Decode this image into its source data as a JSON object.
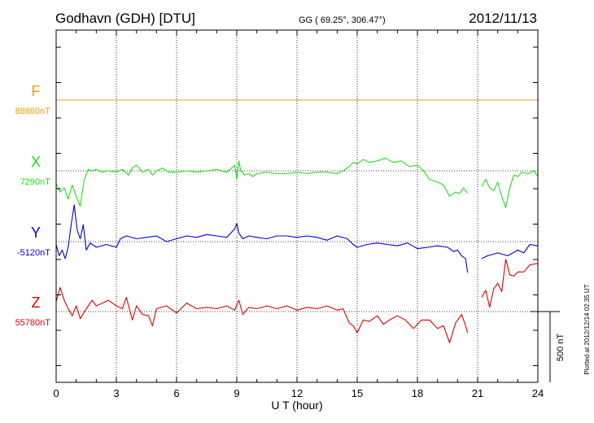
{
  "chart_data": {
    "type": "line",
    "title": "Godhavn (GDH)  [DTU]",
    "subtitle": "GG ( 69.25°, 306.47°)",
    "date": "2012/11/13",
    "xlabel": "U T (hour)",
    "xlim": [
      0,
      24
    ],
    "xticks": [
      "0",
      "3",
      "6",
      "9",
      "12",
      "15",
      "18",
      "21",
      "24"
    ],
    "grid": true,
    "scale_bar_label": "500 nT",
    "plotted_note": "Plotted at 2012/12/14 02:35 UT",
    "panels": [
      {
        "name": "F",
        "baseline_label": "88880nT",
        "color": "#f0a000",
        "x": [
          0,
          24
        ],
        "y": [
          0,
          0
        ]
      },
      {
        "name": "X",
        "baseline_label": "7290nT",
        "color": "#20e020",
        "x": [
          0,
          0.2,
          0.4,
          0.6,
          0.8,
          1.0,
          1.2,
          1.4,
          1.6,
          1.8,
          2.0,
          2.3,
          2.6,
          3.0,
          3.3,
          3.6,
          3.8,
          4.0,
          4.3,
          4.6,
          4.8,
          5.0,
          5.3,
          5.6,
          6.0,
          6.5,
          7.0,
          7.5,
          8.0,
          8.5,
          8.9,
          9.0,
          9.1,
          9.2,
          9.4,
          9.6,
          9.8,
          10.0,
          10.5,
          11.0,
          11.5,
          12.0,
          12.5,
          13.0,
          13.5,
          14.0,
          14.3,
          14.6,
          14.8,
          15.0,
          15.3,
          15.6,
          16.0,
          16.4,
          16.8,
          17.2,
          17.6,
          18.0,
          18.3,
          18.6,
          19.0,
          19.3,
          19.6,
          19.9,
          20.1,
          20.3,
          20.5,
          null,
          21.2,
          21.4,
          21.6,
          21.8,
          22.0,
          22.2,
          22.4,
          22.6,
          22.8,
          23.0,
          23.2,
          23.5,
          23.8,
          24.0
        ],
        "y": [
          -90,
          -150,
          -120,
          -200,
          -100,
          -180,
          -250,
          -60,
          10,
          0,
          10,
          -10,
          0,
          -10,
          10,
          -30,
          20,
          40,
          -10,
          10,
          -30,
          0,
          20,
          -10,
          -10,
          0,
          -10,
          0,
          10,
          -10,
          40,
          -60,
          70,
          0,
          -30,
          -20,
          -40,
          -20,
          -10,
          -20,
          -20,
          -10,
          -20,
          -10,
          -10,
          -20,
          0,
          30,
          60,
          50,
          80,
          60,
          70,
          90,
          60,
          70,
          30,
          40,
          0,
          -60,
          -80,
          -100,
          -180,
          -150,
          -160,
          -120,
          -160,
          null,
          -110,
          -60,
          -120,
          -140,
          -80,
          -180,
          -260,
          -120,
          -30,
          -40,
          -10,
          -20,
          0,
          -40
        ]
      },
      {
        "name": "Y",
        "baseline_label": "-5120nT",
        "color": "#0000e0",
        "x": [
          0,
          0.15,
          0.3,
          0.45,
          0.6,
          0.75,
          0.9,
          1.05,
          1.2,
          1.35,
          1.5,
          1.7,
          2.0,
          2.5,
          3.0,
          3.2,
          3.5,
          4.0,
          4.5,
          5.0,
          5.5,
          6.0,
          6.5,
          7.0,
          7.5,
          8.0,
          8.5,
          8.9,
          9.0,
          9.1,
          9.3,
          9.6,
          10.0,
          10.5,
          11.0,
          11.5,
          12.0,
          12.5,
          13.0,
          13.5,
          14.0,
          14.5,
          14.8,
          15.0,
          15.5,
          16.0,
          16.5,
          17.0,
          17.5,
          18.0,
          18.5,
          19.0,
          19.5,
          19.8,
          20.0,
          20.2,
          20.4,
          20.5,
          null,
          21.2,
          21.5,
          22.0,
          22.5,
          23.0,
          23.3,
          23.6,
          24.0
        ],
        "y": [
          -20,
          -100,
          -60,
          -120,
          -40,
          120,
          260,
          80,
          20,
          120,
          -60,
          -10,
          -40,
          -20,
          -40,
          20,
          40,
          20,
          30,
          40,
          0,
          20,
          40,
          30,
          50,
          40,
          30,
          90,
          130,
          60,
          20,
          40,
          30,
          20,
          40,
          40,
          30,
          40,
          30,
          10,
          40,
          20,
          -20,
          -40,
          -20,
          -10,
          -20,
          -30,
          -10,
          -50,
          -40,
          -30,
          -40,
          -70,
          -60,
          -100,
          -120,
          -220,
          null,
          -120,
          -100,
          -80,
          -100,
          -60,
          -80,
          -20,
          -30
        ]
      },
      {
        "name": "Z",
        "baseline_label": "55780nT",
        "color": "#e00000",
        "x": [
          0,
          0.2,
          0.4,
          0.6,
          0.8,
          1.0,
          1.2,
          1.5,
          1.8,
          2.0,
          2.3,
          2.6,
          3.0,
          3.3,
          3.5,
          3.8,
          4.0,
          4.3,
          4.6,
          4.8,
          5.0,
          5.5,
          6.0,
          6.5,
          7.0,
          7.5,
          8.0,
          8.5,
          8.9,
          9.1,
          9.3,
          9.6,
          10.0,
          10.5,
          11.0,
          11.5,
          12.0,
          12.5,
          13.0,
          13.5,
          14.0,
          14.3,
          14.6,
          14.8,
          15.0,
          15.3,
          15.6,
          16.0,
          16.3,
          16.6,
          17.0,
          17.4,
          17.8,
          18.2,
          18.6,
          19.0,
          19.3,
          19.6,
          19.9,
          20.2,
          20.4,
          20.5,
          null,
          21.2,
          21.4,
          21.6,
          21.8,
          22.0,
          22.2,
          22.4,
          22.6,
          22.8,
          23.0,
          23.3,
          23.6,
          24.0
        ],
        "y": [
          70,
          170,
          80,
          20,
          -30,
          40,
          -50,
          20,
          80,
          40,
          60,
          80,
          40,
          20,
          100,
          -60,
          40,
          -20,
          -30,
          -100,
          20,
          40,
          -10,
          60,
          20,
          30,
          20,
          40,
          10,
          80,
          -20,
          30,
          20,
          40,
          20,
          40,
          10,
          30,
          20,
          40,
          10,
          20,
          -80,
          -100,
          -150,
          -60,
          -70,
          -30,
          -90,
          -60,
          -30,
          -60,
          -120,
          -60,
          -60,
          -120,
          -100,
          -220,
          -80,
          -20,
          -100,
          -150,
          null,
          100,
          150,
          30,
          160,
          200,
          140,
          370,
          260,
          250,
          280,
          280,
          330,
          340
        ]
      }
    ]
  }
}
